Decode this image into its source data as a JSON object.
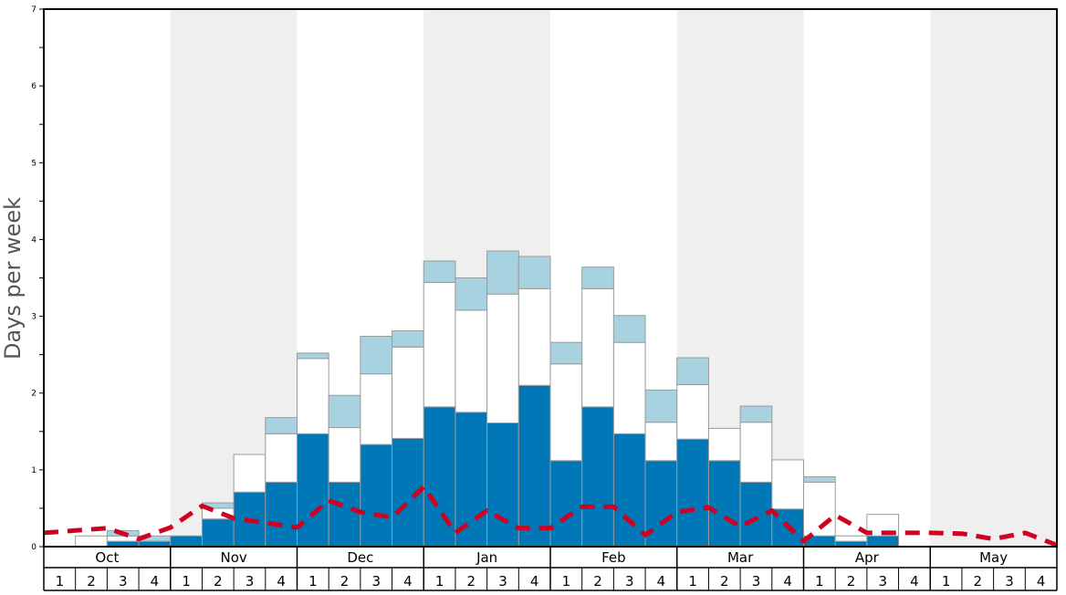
{
  "chart_data": {
    "type": "bar",
    "xlabel": "",
    "ylabel": "Days per week",
    "ylim": [
      0,
      7
    ],
    "yticks": [
      "0",
      "1",
      "2",
      "3",
      "4",
      "5",
      "6",
      "7"
    ],
    "months": [
      "Oct",
      "Nov",
      "Dec",
      "Jan",
      "Feb",
      "Mar",
      "Apr",
      "May"
    ],
    "weeks": [
      "1",
      "2",
      "3",
      "4"
    ],
    "grid": false,
    "legend": "none",
    "colors": {
      "dark": "#0077b6",
      "white": "#ffffff",
      "light": "#a8d2e0",
      "line": "#d00020",
      "shade": "#efefef"
    },
    "stack_dark": [
      0.0,
      0.0,
      0.07,
      0.07,
      0.14,
      0.36,
      0.71,
      0.84,
      1.47,
      0.84,
      1.33,
      1.41,
      1.82,
      1.75,
      1.61,
      2.1,
      1.12,
      1.82,
      1.47,
      1.12,
      1.4,
      1.12,
      0.84,
      0.49,
      0.14,
      0.07,
      0.14,
      0.0,
      0.0,
      0.0,
      0.0,
      0.0
    ],
    "stack_white": [
      0.0,
      0.14,
      0.07,
      0.0,
      0.0,
      0.14,
      0.49,
      0.63,
      0.98,
      0.71,
      0.92,
      1.19,
      1.62,
      1.33,
      1.68,
      1.26,
      1.26,
      1.54,
      1.19,
      0.5,
      0.71,
      0.42,
      0.78,
      0.64,
      0.7,
      0.07,
      0.28,
      0.0,
      0.0,
      0.0,
      0.0,
      0.0
    ],
    "stack_light": [
      0.0,
      0.0,
      0.07,
      0.07,
      0.0,
      0.07,
      0.0,
      0.21,
      0.07,
      0.42,
      0.49,
      0.21,
      0.28,
      0.42,
      0.56,
      0.42,
      0.28,
      0.28,
      0.35,
      0.42,
      0.35,
      0.0,
      0.21,
      0.0,
      0.07,
      0.0,
      0.0,
      0.0,
      0.0,
      0.0,
      0.0,
      0.0
    ],
    "line_values": [
      0.18,
      0.21,
      0.24,
      0.1,
      0.25,
      0.53,
      0.37,
      0.31,
      0.25,
      0.6,
      0.45,
      0.38,
      0.78,
      0.18,
      0.47,
      0.24,
      0.24,
      0.52,
      0.52,
      0.15,
      0.45,
      0.51,
      0.26,
      0.47,
      0.07,
      0.41,
      0.18,
      0.18,
      0.18,
      0.17,
      0.1,
      0.18,
      0.02
    ]
  }
}
